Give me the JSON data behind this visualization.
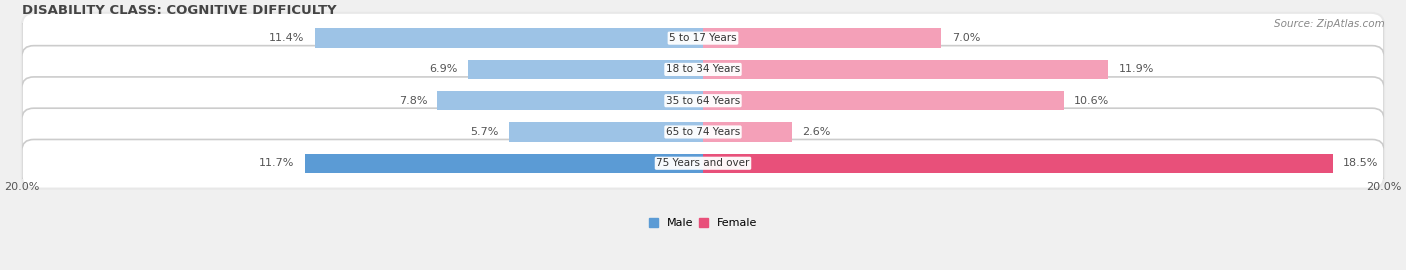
{
  "title": "DISABILITY CLASS: COGNITIVE DIFFICULTY",
  "source": "Source: ZipAtlas.com",
  "categories": [
    "5 to 17 Years",
    "18 to 34 Years",
    "35 to 64 Years",
    "65 to 74 Years",
    "75 Years and over"
  ],
  "male_values": [
    11.4,
    6.9,
    7.8,
    5.7,
    11.7
  ],
  "female_values": [
    7.0,
    11.9,
    10.6,
    2.6,
    18.5
  ],
  "max_val": 20.0,
  "male_color_dark": "#5B9BD5",
  "male_color_light": "#9DC3E6",
  "female_color_dark": "#E8507A",
  "female_color_light": "#F4A0B8",
  "row_bg_color": "#E8E8E8",
  "bar_height": 0.62,
  "title_fontsize": 9.5,
  "source_fontsize": 7.5,
  "label_fontsize": 8,
  "tick_fontsize": 8,
  "category_fontsize": 7.5
}
